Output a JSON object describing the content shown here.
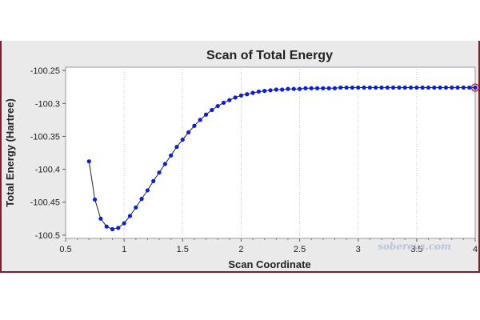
{
  "chart_data": {
    "type": "line",
    "title": "Scan of Total Energy",
    "xlabel": "Scan Coordinate",
    "ylabel": "Total Energy (Hartree)",
    "xlim": [
      0.5,
      4.0
    ],
    "ylim": [
      -100.505,
      -100.245
    ],
    "x_ticks": [
      0.5,
      1,
      1.5,
      2,
      2.5,
      3,
      3.5,
      4
    ],
    "x_tick_labels": [
      "0.5",
      "1",
      "1.5",
      "2",
      "2.5",
      "3",
      "3.5",
      "4"
    ],
    "y_ticks": [
      -100.25,
      -100.3,
      -100.35,
      -100.4,
      -100.45,
      -100.5
    ],
    "y_tick_labels": [
      "-100.25",
      "-100.3",
      "-100.35",
      "-100.4",
      "-100.45",
      "-100.5"
    ],
    "grid": "vertical dotted",
    "watermark": "sobereva.com",
    "colors": {
      "line": "#222222",
      "marker": "#0a1fd6",
      "highlight_ring": "#c0152f",
      "plot_background": "#ffffff",
      "window_background": "#eaeaea",
      "frame": "#7a1f2b"
    },
    "highlighted_point": {
      "x": 4.0,
      "y": -100.276
    },
    "series": [
      {
        "x": [
          0.7,
          0.75,
          0.8,
          0.85,
          0.9,
          0.95,
          1.0,
          1.05,
          1.1,
          1.15,
          1.2,
          1.25,
          1.3,
          1.35,
          1.4,
          1.45,
          1.5,
          1.55,
          1.6,
          1.65,
          1.7,
          1.75,
          1.8,
          1.85,
          1.9,
          1.95,
          2.0,
          2.05,
          2.1,
          2.15,
          2.2,
          2.25,
          2.3,
          2.35,
          2.4,
          2.45,
          2.5,
          2.55,
          2.6,
          2.65,
          2.7,
          2.75,
          2.8,
          2.85,
          2.9,
          2.95,
          3.0,
          3.05,
          3.1,
          3.15,
          3.2,
          3.25,
          3.3,
          3.35,
          3.4,
          3.45,
          3.5,
          3.55,
          3.6,
          3.65,
          3.7,
          3.75,
          3.8,
          3.85,
          3.9,
          3.95,
          4.0
        ],
        "y": [
          -100.388,
          -100.446,
          -100.475,
          -100.487,
          -100.491,
          -100.489,
          -100.482,
          -100.471,
          -100.458,
          -100.445,
          -100.432,
          -100.418,
          -100.405,
          -100.392,
          -100.379,
          -100.366,
          -100.355,
          -100.344,
          -100.334,
          -100.325,
          -100.317,
          -100.31,
          -100.304,
          -100.299,
          -100.295,
          -100.291,
          -100.288,
          -100.286,
          -100.284,
          -100.282,
          -100.281,
          -100.28,
          -100.279,
          -100.279,
          -100.278,
          -100.278,
          -100.278,
          -100.277,
          -100.277,
          -100.277,
          -100.277,
          -100.277,
          -100.277,
          -100.276,
          -100.276,
          -100.276,
          -100.276,
          -100.276,
          -100.276,
          -100.276,
          -100.276,
          -100.276,
          -100.276,
          -100.276,
          -100.276,
          -100.276,
          -100.276,
          -100.276,
          -100.276,
          -100.276,
          -100.276,
          -100.276,
          -100.276,
          -100.276,
          -100.276,
          -100.276,
          -100.276
        ]
      }
    ]
  }
}
